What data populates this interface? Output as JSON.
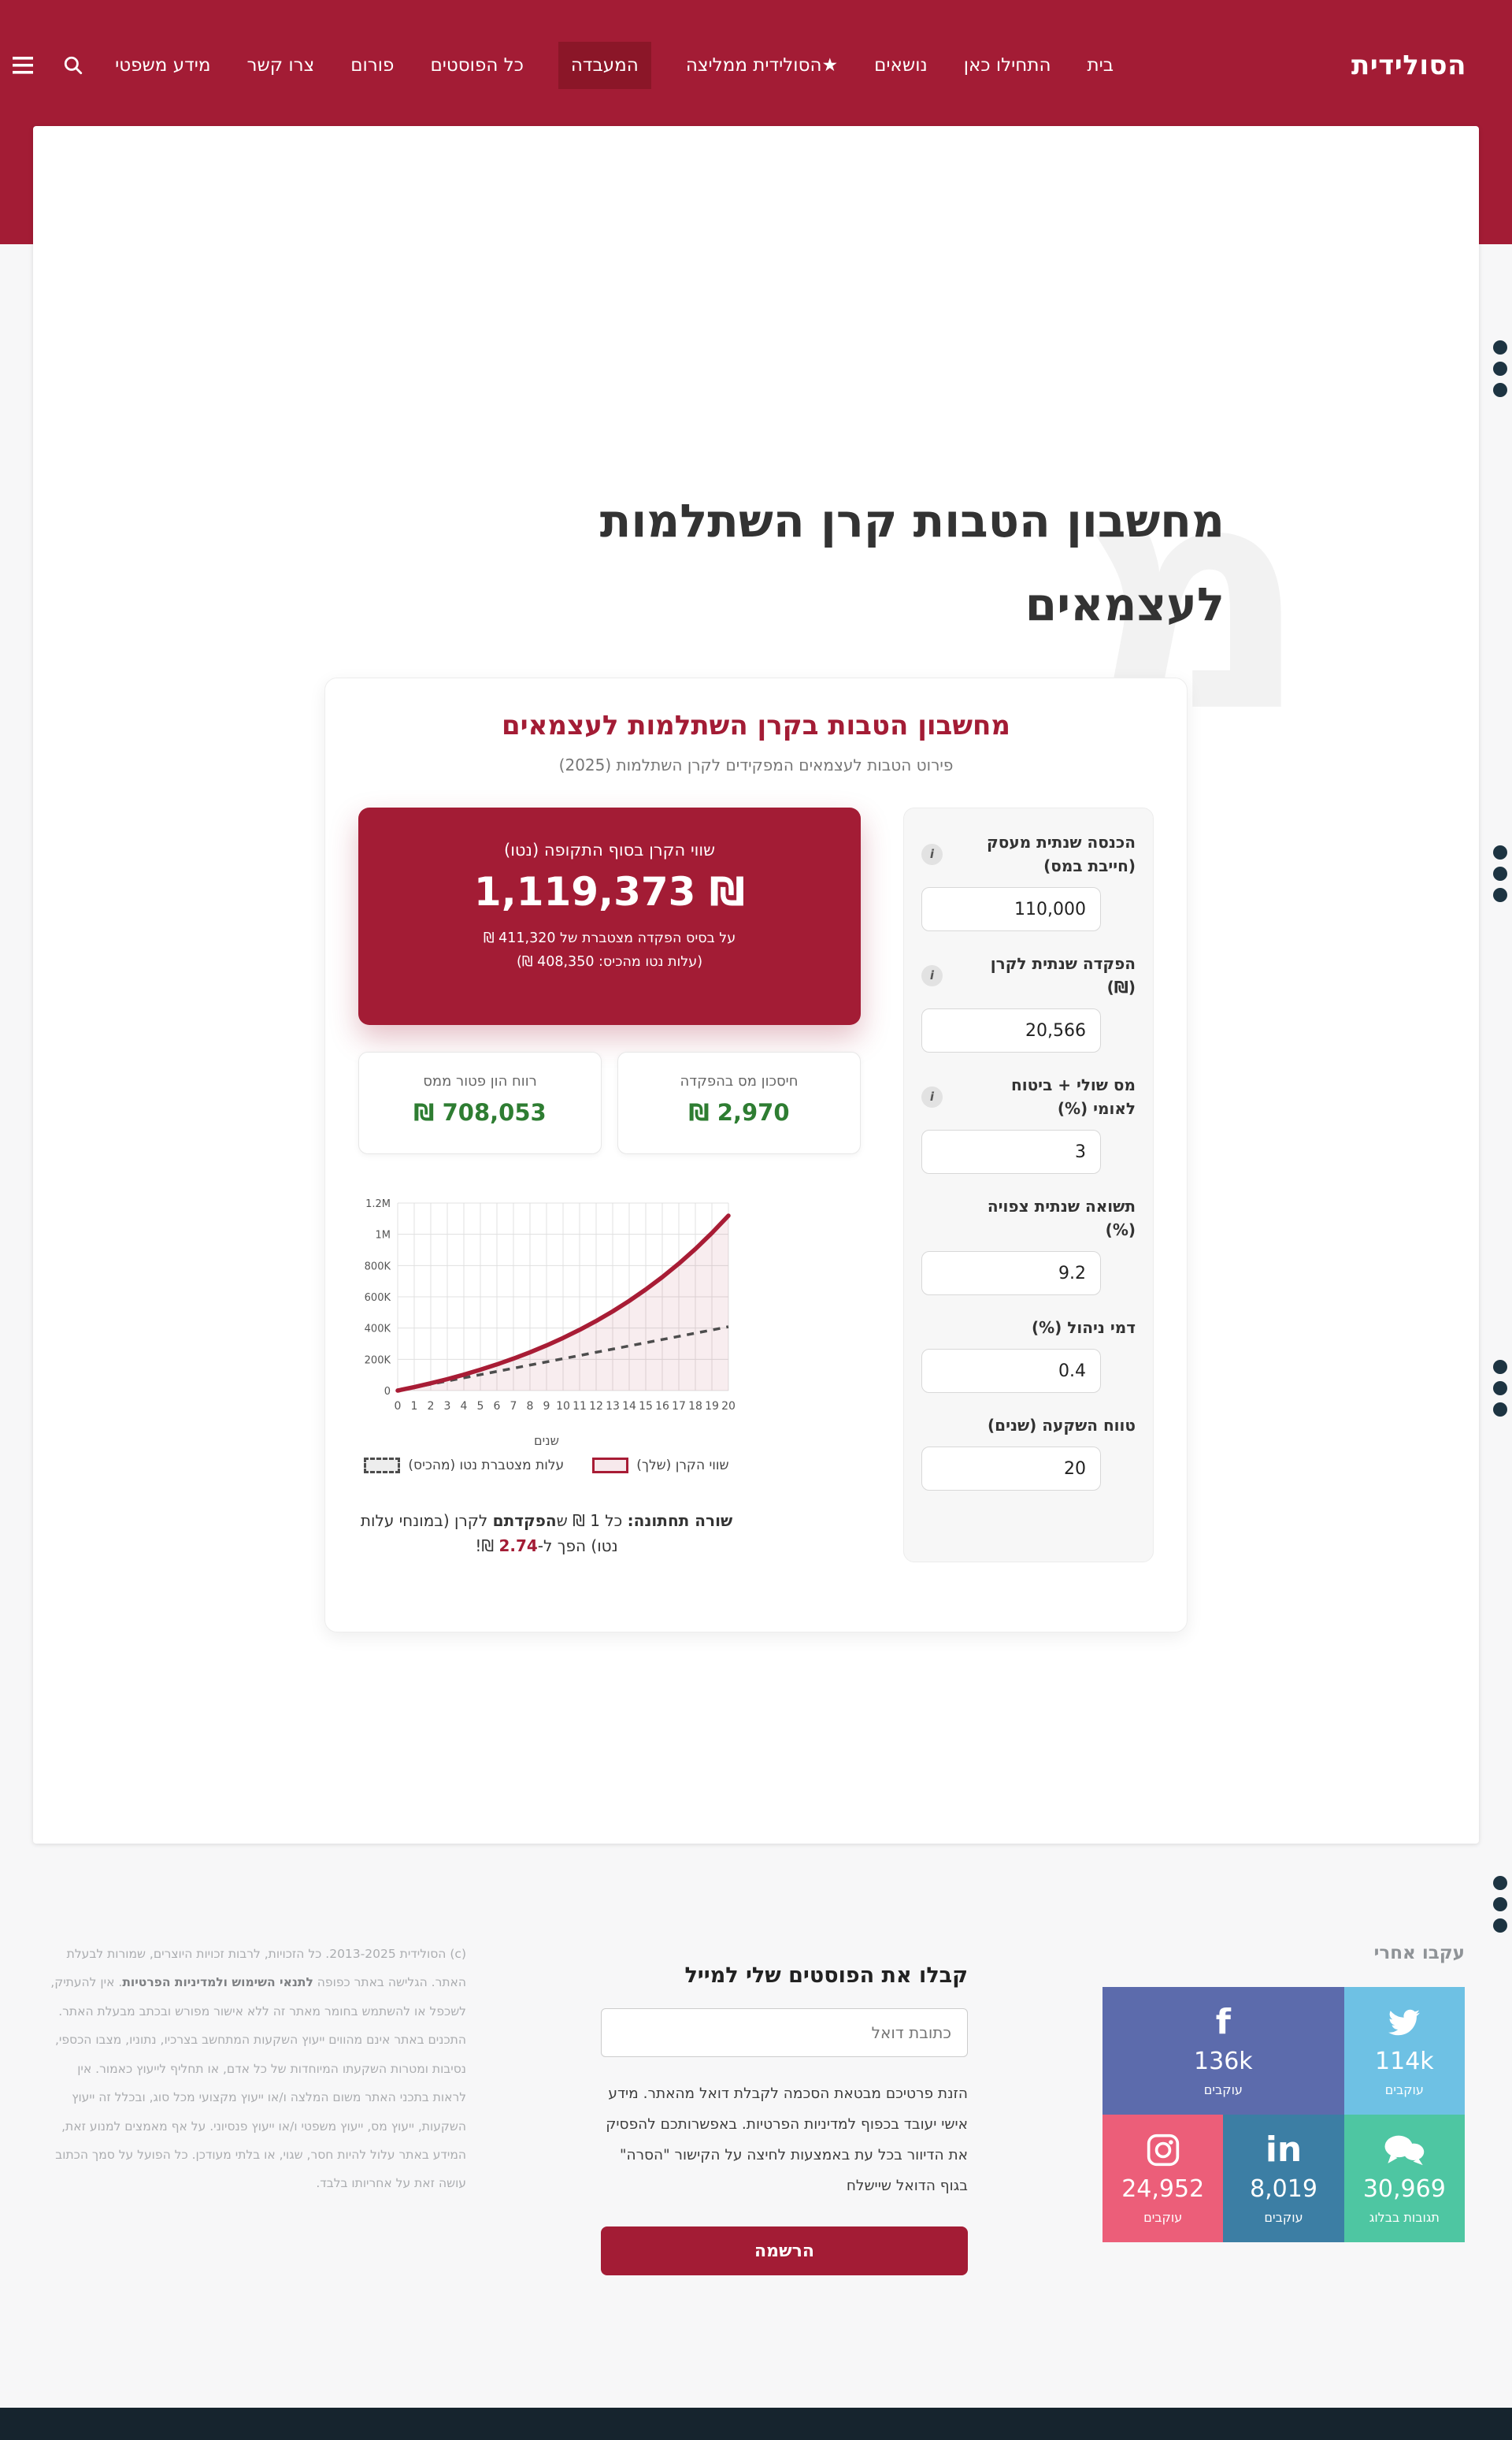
{
  "brand": {
    "logo": "הסולידית"
  },
  "nav": {
    "active_index": 4,
    "items": [
      {
        "label": "בית"
      },
      {
        "label": "התחילו כאן"
      },
      {
        "label": "נושאים"
      },
      {
        "label": "★הסולידית ממליצה"
      },
      {
        "label": "המעבדה"
      },
      {
        "label": "כל הפוסטים"
      },
      {
        "label": "פורום"
      },
      {
        "label": "צרו קשר"
      },
      {
        "label": "מידע משפטי"
      }
    ]
  },
  "hero": {
    "title_line1": "מחשבון הטבות קרן השתלמות",
    "title_line2": "לעצמאים",
    "watermark": "מ"
  },
  "calculator": {
    "title": "מחשבון הטבות בקרן השתלמות לעצמאים",
    "subtitle": "פירוט הטבות לעצמאים המפקידים לקרן השתלמות (2025)",
    "result_box": {
      "label": "שווי הקרן בסוף התקופה (נטו)",
      "value": "1,119,373 ₪",
      "sub1": "על בסיס הפקדה מצטברת של 411,320 ₪",
      "sub2": "(עלות נטו מהכיס: 408,350 ₪)"
    },
    "stat_cards": [
      {
        "label": "חיסכון מס בהפקדה",
        "value": "₪ 2,970"
      },
      {
        "label": "רווח הון פטור ממס",
        "value": "₪ 708,053"
      }
    ],
    "bottom_line": {
      "prefix_bold": "שורה תחתונה:",
      "mid1": " כל 1 ₪ ש",
      "bold2": "הפקדתם",
      "mid2": " לקרן (במונחי עלות נטו) הפך ל-",
      "highlight": "2.74",
      "suffix": " ₪!"
    },
    "fields": [
      {
        "label": "הכנסה שנתית מעסק (חייבת במס)",
        "value": "110,000",
        "info": true
      },
      {
        "label": "הפקדה שנתית לקרן (₪)",
        "value": "20,566",
        "info": true
      },
      {
        "label": "מס שולי + ביטוח לאומי (%)",
        "value": "3",
        "info": true
      },
      {
        "label": "תשואה שנתית צפויה (%)",
        "value": "9.2",
        "info": false
      },
      {
        "label": "דמי ניהול (%)",
        "value": "0.4",
        "info": false
      },
      {
        "label": "טווח השקעה (שנים)",
        "value": "20",
        "info": false
      }
    ]
  },
  "chart_data": {
    "type": "line",
    "title": "",
    "xlabel": "שנים",
    "ylabel": "",
    "x": [
      0,
      1,
      2,
      3,
      4,
      5,
      6,
      7,
      8,
      9,
      10,
      11,
      12,
      13,
      14,
      15,
      16,
      17,
      18,
      19,
      20
    ],
    "xlim": [
      0,
      20
    ],
    "ylim": [
      0,
      1200000
    ],
    "grid": true,
    "legend_position": "bottom",
    "yticks": [
      {
        "v": 0,
        "label": "0"
      },
      {
        "v": 200000,
        "label": "200K"
      },
      {
        "v": 400000,
        "label": "400K"
      },
      {
        "v": 600000,
        "label": "600K"
      },
      {
        "v": 800000,
        "label": "800K"
      },
      {
        "v": 1000000,
        "label": "1M"
      },
      {
        "v": 1200000,
        "label": "1.2M"
      }
    ],
    "series": [
      {
        "name": "שווי הקרן (שלך)",
        "style": "solid-area",
        "color": "#a81c35",
        "values": [
          0,
          22376,
          46721,
          73207,
          102027,
          133381,
          167490,
          204605,
          244987,
          288923,
          336723,
          388729,
          445313,
          506879,
          573861,
          646737,
          726024,
          812290,
          906148,
          1008265,
          1119373
        ]
      },
      {
        "name": "עלות מצטברת נטו (מהכיס)",
        "style": "dashed",
        "color": "#4d4d4d",
        "values": [
          0,
          20418,
          40835,
          61253,
          81670,
          102088,
          122505,
          142923,
          163340,
          183758,
          204175,
          224593,
          245010,
          265428,
          285845,
          306263,
          326680,
          347098,
          367515,
          387933,
          408350
        ]
      }
    ]
  },
  "footer": {
    "legal": {
      "text_before": "(c) הסולידית 2013-2025. כל הזכויות, לרבות זכויות היוצרים, שמורות לבעלת האתר. הגלישה באתר כפופה ",
      "link": "לתנאי השימוש ולמדיניות הפרטיות",
      "text_after": ". אין להעתיק, לשכפל או להשתמש בחומר מאתר זה ללא אישור מפורש ובכתב מבעלת האתר. התכנים באתר אינם מהווים ייעוץ השקעות המתחשב בצרכיו, נתוניו, מצבו הכספי, נסיבות ומטרות השקעתו המיוחדות של כל אדם, או תחליף לייעוץ כאמור. אין לראות בתכני האתר משום המלצה ו/או ייעוץ מקצועי מכל סוג, ובכלל זה ייעוץ השקעות, ייעוץ מס, ייעוץ משפטי ו/או ייעוץ פנסיוני. על אף מאמצים למנוע זאת, המידע באתר עלול להיות חסר, שגוי, או בלתי מעודכן. כל הפועל על סמך הכתוב עושה זאת על אחריותו בלבד."
    },
    "subscribe": {
      "heading": "קבלו את הפוסטים שלי למייל",
      "placeholder": "כתובת דואל",
      "disclaimer": "הזנת פרטיכם מבטאת הסכמה לקבלת דואל מהאתר. מידע אישי יעובד בכפוף למדיניות הפרטיות. באפשרותכם להפסיק את הדיוור בכל עת באמצעות לחיצה על הקישור \"הסרה\" בגוף הדואל שיישלח",
      "button": "הרשמה"
    },
    "follow": {
      "heading": "עקבו אחרי",
      "tiles": [
        {
          "network": "twitter",
          "count": "114k",
          "label": "עוקבים",
          "color": "#6ec1e4"
        },
        {
          "network": "facebook",
          "count": "136k",
          "label": "עוקבים",
          "color": "#5c6bac"
        },
        {
          "network": "comments",
          "count": "30,969",
          "label": "תגובות בבלוג",
          "color": "#4ec6a2"
        },
        {
          "network": "linkedin",
          "count": "8,019",
          "label": "עוקבים",
          "color": "#3c7ea4"
        },
        {
          "network": "instagram",
          "count": "24,952",
          "label": "עוקבים",
          "color": "#ec5e79"
        }
      ]
    }
  },
  "colors": {
    "accent": "#a31c35",
    "accent_dark": "#8b1628",
    "positive_green": "#2e7d32",
    "bottom_bar": "#16242e"
  }
}
